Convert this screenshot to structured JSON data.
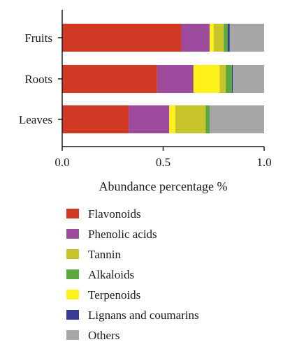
{
  "chart_data": {
    "type": "bar",
    "orientation": "horizontal",
    "stacked": true,
    "categories": [
      "Fruits",
      "Roots",
      "Leaves"
    ],
    "series": [
      {
        "name": "Flavonoids",
        "color": "#d03a24",
        "values": [
          0.59,
          0.47,
          0.33
        ]
      },
      {
        "name": "Phenolic acids",
        "color": "#9b4a9c",
        "values": [
          0.14,
          0.18,
          0.2
        ]
      },
      {
        "name": "Terpenoids",
        "color": "#fff21a",
        "values": [
          0.02,
          0.13,
          0.03
        ]
      },
      {
        "name": "Tannin",
        "color": "#c7c52a",
        "values": [
          0.05,
          0.03,
          0.15
        ]
      },
      {
        "name": "Alkaloids",
        "color": "#5aa83e",
        "values": [
          0.02,
          0.03,
          0.02
        ]
      },
      {
        "name": "Lignans and coumarins",
        "color": "#3b3a93",
        "values": [
          0.01,
          0.005,
          0.0
        ]
      },
      {
        "name": "Others",
        "color": "#a6a6a9",
        "values": [
          0.17,
          0.155,
          0.27
        ]
      }
    ],
    "legend_order": [
      "Flavonoids",
      "Phenolic acids",
      "Tannin",
      "Alkaloids",
      "Terpenoids",
      "Lignans and coumarins",
      "Others"
    ],
    "xlabel": "Abundance percentage %",
    "xticks": [
      "0.0",
      "0.5",
      "1.0"
    ],
    "xlim": [
      0,
      1
    ],
    "grid": false,
    "legend_position": "bottom"
  }
}
